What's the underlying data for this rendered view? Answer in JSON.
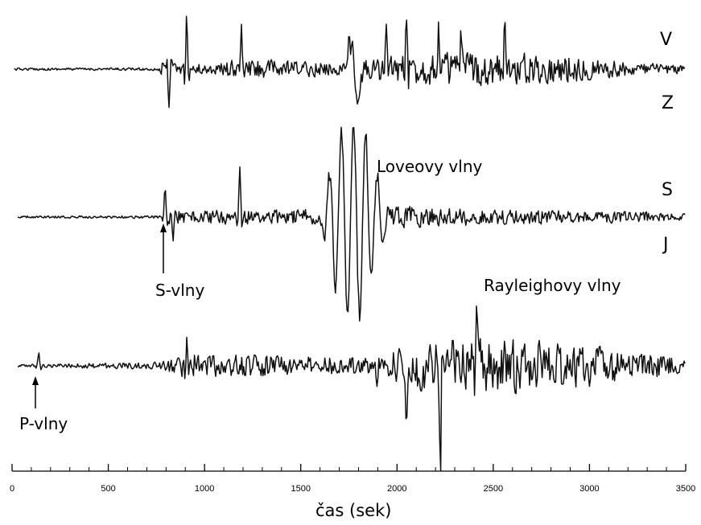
{
  "colors": {
    "trace": "#111111",
    "background": "#ffffff",
    "text": "#000000"
  },
  "traces": [
    {
      "id": "vertical",
      "labels": {
        "top": "V",
        "bottom": "Z"
      }
    },
    {
      "id": "north-south",
      "labels": {
        "top": "S",
        "bottom": "J"
      }
    },
    {
      "id": "east-west"
    }
  ],
  "annotations": {
    "love": "Loveovy vlny",
    "s_waves": "S-vlny",
    "rayleigh": "Rayleighovy vlny",
    "p_waves": "P-vlny"
  },
  "axis": {
    "title": "čas (sek)",
    "min": 0,
    "max": 3500,
    "major_ticks": [
      0,
      500,
      1000,
      1500,
      2000,
      2500,
      3000,
      3500
    ],
    "minor_step": 100
  }
}
